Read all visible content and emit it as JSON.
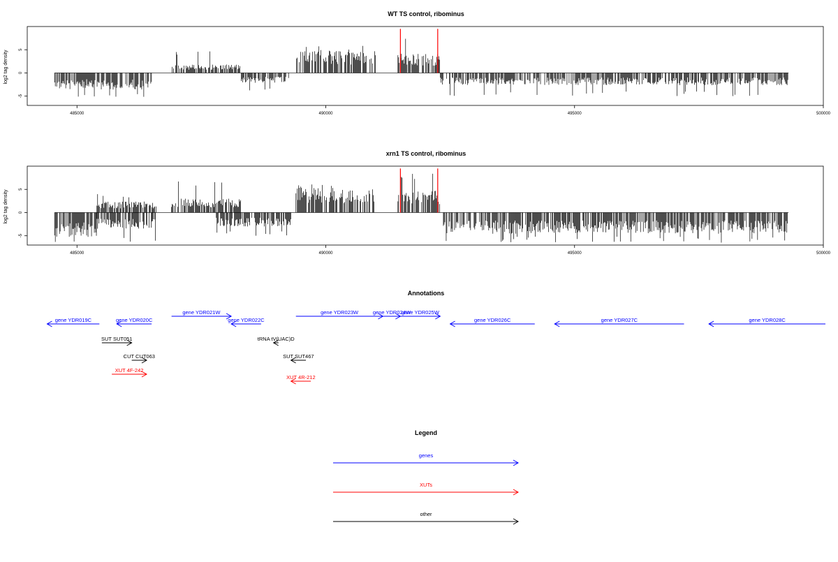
{
  "chart_data": [
    {
      "type": "bar",
      "title": "WT TS control, ribominus",
      "ylabel": "log2 tag density",
      "xlim": [
        484000,
        500000
      ],
      "ylim": [
        -7,
        10
      ],
      "xticks": [
        "485000",
        "490000",
        "495000",
        "500000"
      ],
      "yticks": [
        "-5",
        "0",
        "5"
      ],
      "markers_color": "#ff0000",
      "markers_x": [
        491500,
        492250
      ],
      "profile_segments": [
        {
          "from": 484550,
          "to": 486500,
          "sign": -1,
          "mean": 3.0,
          "max": 5.5
        },
        {
          "from": 486900,
          "to": 488300,
          "sign": 1,
          "mean": 1.5,
          "max": 4.8
        },
        {
          "from": 488300,
          "to": 489300,
          "sign": -1,
          "mean": 1.8,
          "max": 4.0
        },
        {
          "from": 489400,
          "to": 491000,
          "sign": 1,
          "mean": 4.0,
          "max": 6.0
        },
        {
          "from": 491450,
          "to": 492300,
          "sign": 1,
          "mean": 3.5,
          "max": 8.0
        },
        {
          "from": 492300,
          "to": 499300,
          "sign": -1,
          "mean": 2.2,
          "max": 5.0
        }
      ]
    },
    {
      "type": "bar",
      "title": "xrn1 TS control, ribominus",
      "ylabel": "log2 tag density",
      "xlim": [
        484000,
        500000
      ],
      "ylim": [
        -7,
        10
      ],
      "xticks": [
        "485000",
        "490000",
        "495000",
        "500000"
      ],
      "yticks": [
        "-5",
        "0",
        "5"
      ],
      "markers_color": "#ff0000",
      "markers_x": [
        491500,
        492250
      ],
      "profile_segments": [
        {
          "from": 484550,
          "to": 485400,
          "sign": -1,
          "mean": 4.5,
          "max": 6.5
        },
        {
          "from": 485400,
          "to": 486600,
          "sign": 1,
          "mean": 2.0,
          "max": 4.0
        },
        {
          "from": 485400,
          "to": 486600,
          "sign": -1,
          "mean": 3.0,
          "max": 6.5
        },
        {
          "from": 486900,
          "to": 488300,
          "sign": 1,
          "mean": 2.5,
          "max": 7.0
        },
        {
          "from": 487800,
          "to": 489300,
          "sign": -1,
          "mean": 2.5,
          "max": 5.0
        },
        {
          "from": 489400,
          "to": 491000,
          "sign": 1,
          "mean": 4.5,
          "max": 6.5
        },
        {
          "from": 491450,
          "to": 492300,
          "sign": 1,
          "mean": 4.0,
          "max": 9.0
        },
        {
          "from": 492350,
          "to": 499300,
          "sign": -1,
          "mean": 3.8,
          "max": 6.5
        }
      ]
    }
  ],
  "annotations": {
    "title": "Annotations",
    "features": [
      {
        "label": "gene YDR019C",
        "kind": "gene",
        "strand": "-",
        "start": 484400,
        "end": 485450,
        "row": 1
      },
      {
        "label": "gene YDR020C",
        "kind": "gene",
        "strand": "-",
        "start": 485800,
        "end": 486500,
        "row": 1
      },
      {
        "label": "gene YDR021W",
        "kind": "gene",
        "strand": "+",
        "start": 486900,
        "end": 488100,
        "row": 0
      },
      {
        "label": "gene YDR022C",
        "kind": "gene",
        "strand": "-",
        "start": 488100,
        "end": 488700,
        "row": 1
      },
      {
        "label": "gene YDR023W",
        "kind": "gene",
        "strand": "+",
        "start": 489400,
        "end": 491150,
        "row": 0
      },
      {
        "label": "gene YDR024W",
        "kind": "gene",
        "strand": "+",
        "start": 491150,
        "end": 491500,
        "row": 0
      },
      {
        "label": "gene YDR025W",
        "kind": "gene",
        "strand": "+",
        "start": 491500,
        "end": 492300,
        "row": 0
      },
      {
        "label": "gene YDR026C",
        "kind": "gene",
        "strand": "-",
        "start": 492500,
        "end": 494200,
        "row": 1
      },
      {
        "label": "gene YDR027C",
        "kind": "gene",
        "strand": "-",
        "start": 494600,
        "end": 497200,
        "row": 1
      },
      {
        "label": "gene YDR028C",
        "kind": "gene",
        "strand": "-",
        "start": 497700,
        "end": 500200,
        "row": 1
      },
      {
        "label": "SUT SUT051",
        "kind": "other",
        "strand": "+",
        "start": 485500,
        "end": 486100,
        "row": 2
      },
      {
        "label": "CUT CUT063",
        "kind": "other",
        "strand": "+",
        "start": 486100,
        "end": 486400,
        "row": 3
      },
      {
        "label": "XUT 4F-242",
        "kind": "xut",
        "strand": "+",
        "start": 485700,
        "end": 486400,
        "row": 4
      },
      {
        "label": "tRNA tV(UAC)D",
        "kind": "other",
        "strand": "-",
        "start": 488950,
        "end": 489050,
        "row": 2
      },
      {
        "label": "SUT SUT467",
        "kind": "other",
        "strand": "-",
        "start": 489300,
        "end": 489600,
        "row": 3
      },
      {
        "label": "XUT 4R-212",
        "kind": "xut",
        "strand": "-",
        "start": 489300,
        "end": 489700,
        "row": 5
      }
    ]
  },
  "legend": {
    "title": "Legend",
    "items": [
      {
        "label": "genes",
        "color": "#0000ff"
      },
      {
        "label": "XUTs",
        "color": "#ff0000"
      },
      {
        "label": "other",
        "color": "#000000"
      }
    ]
  },
  "colors": {
    "gene": "#0000ff",
    "xut": "#ff0000",
    "other": "#000000",
    "marker": "#ff0000"
  }
}
